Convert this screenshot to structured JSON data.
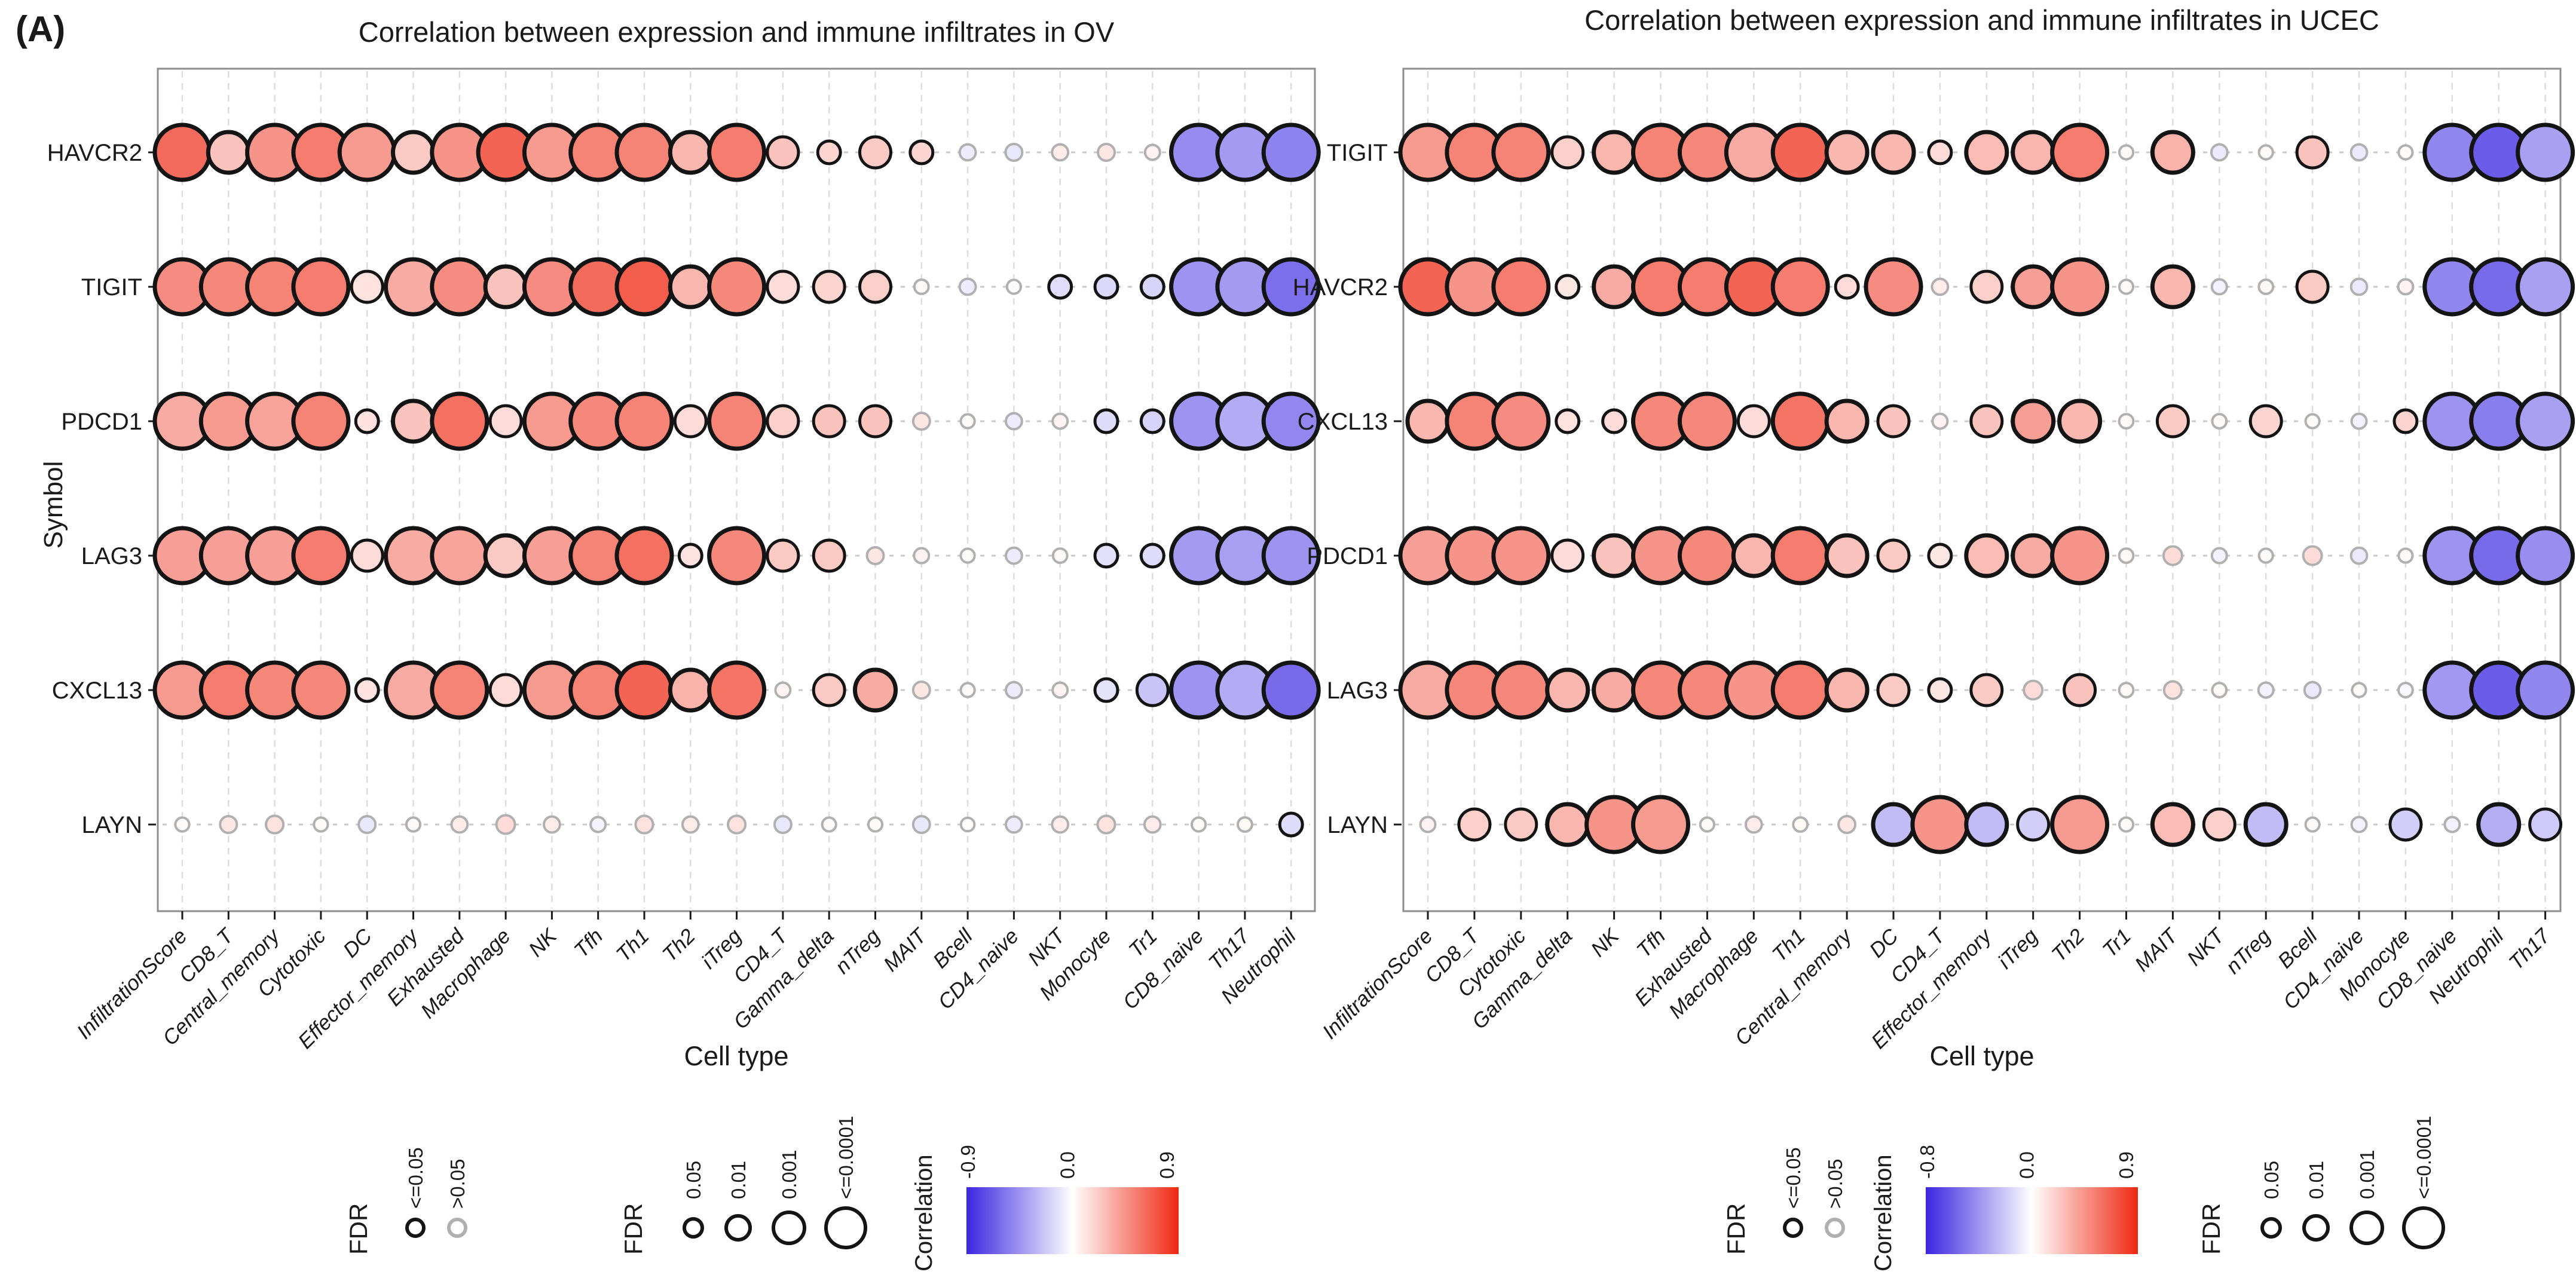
{
  "figure_label": "(A)",
  "chart_data": [
    {
      "type": "scatter",
      "subtype": "bubble-correlation-matrix",
      "title": "Correlation between expression and immune infiltrates in OV",
      "xlabel": "Cell type",
      "ylabel": "Symbol",
      "grid": true,
      "legend_position": "bottom",
      "correlation_range": [
        -0.9,
        0.9
      ],
      "categories": [
        "InfiltrationScore",
        "CD8_T",
        "Central_memory",
        "Cytotoxic",
        "DC",
        "Effector_memory",
        "Exhausted",
        "Macrophage",
        "NK",
        "Tfh",
        "Th1",
        "Th2",
        "iTreg",
        "CD4_T",
        "Gamma_delta",
        "nTreg",
        "MAIT",
        "Bcell",
        "CD4_naive",
        "NKT",
        "Monocyte",
        "Tr1",
        "CD8_naive",
        "Th17",
        "Neutrophil"
      ],
      "rows": [
        {
          "gene": "HAVCR2",
          "corr": [
            0.62,
            0.25,
            0.45,
            0.55,
            0.42,
            0.22,
            0.45,
            0.65,
            0.42,
            0.52,
            0.52,
            0.3,
            0.55,
            0.25,
            0.18,
            0.22,
            0.18,
            -0.08,
            -0.1,
            0.08,
            0.1,
            0.05,
            -0.48,
            -0.42,
            -0.52
          ],
          "fdr_level": [
            4,
            3,
            4,
            4,
            4,
            3,
            4,
            4,
            4,
            4,
            4,
            3,
            4,
            2,
            1,
            2,
            1,
            0,
            0,
            0,
            0,
            0,
            4,
            4,
            4
          ]
        },
        {
          "gene": "TIGIT",
          "corr": [
            0.48,
            0.5,
            0.52,
            0.55,
            0.12,
            0.35,
            0.48,
            0.25,
            0.48,
            0.62,
            0.68,
            0.3,
            0.5,
            0.15,
            0.18,
            0.2,
            0.03,
            -0.08,
            -0.02,
            -0.14,
            -0.16,
            -0.18,
            -0.45,
            -0.42,
            -0.6
          ],
          "fdr_level": [
            4,
            4,
            4,
            4,
            2,
            4,
            4,
            3,
            4,
            4,
            4,
            3,
            4,
            2,
            2,
            2,
            0,
            0,
            0,
            1,
            1,
            1,
            4,
            4,
            4
          ]
        },
        {
          "gene": "PDCD1",
          "corr": [
            0.35,
            0.42,
            0.38,
            0.52,
            0.12,
            0.25,
            0.6,
            0.15,
            0.42,
            0.5,
            0.52,
            0.15,
            0.52,
            0.2,
            0.25,
            0.25,
            0.1,
            0.02,
            -0.08,
            0.05,
            -0.15,
            -0.18,
            -0.45,
            -0.35,
            -0.5
          ],
          "fdr_level": [
            4,
            4,
            4,
            4,
            1,
            3,
            4,
            2,
            4,
            4,
            4,
            2,
            4,
            2,
            2,
            2,
            0,
            0,
            0,
            0,
            1,
            1,
            4,
            4,
            4
          ]
        },
        {
          "gene": "LAG3",
          "corr": [
            0.4,
            0.4,
            0.4,
            0.55,
            0.15,
            0.35,
            0.38,
            0.22,
            0.4,
            0.52,
            0.6,
            0.12,
            0.5,
            0.22,
            0.22,
            0.1,
            0.05,
            0.02,
            -0.08,
            0.03,
            -0.13,
            -0.15,
            -0.42,
            -0.4,
            -0.45
          ],
          "fdr_level": [
            4,
            4,
            4,
            4,
            2,
            4,
            4,
            3,
            4,
            4,
            4,
            1,
            4,
            2,
            2,
            0,
            0,
            0,
            0,
            0,
            1,
            1,
            4,
            4,
            4
          ]
        },
        {
          "gene": "CXCL13",
          "corr": [
            0.42,
            0.55,
            0.5,
            0.5,
            0.12,
            0.35,
            0.52,
            0.15,
            0.42,
            0.52,
            0.65,
            0.32,
            0.58,
            0.05,
            0.22,
            0.35,
            0.1,
            0.02,
            -0.08,
            0.05,
            -0.12,
            -0.25,
            -0.45,
            -0.35,
            -0.62
          ],
          "fdr_level": [
            4,
            4,
            4,
            4,
            1,
            4,
            4,
            2,
            4,
            4,
            4,
            3,
            4,
            0,
            2,
            3,
            0,
            0,
            0,
            0,
            1,
            2,
            4,
            4,
            4
          ]
        },
        {
          "gene": "LAYN",
          "corr": [
            0.02,
            0.1,
            0.12,
            0.02,
            -0.1,
            0.02,
            0.08,
            0.15,
            0.08,
            -0.05,
            0.12,
            0.08,
            0.12,
            -0.1,
            0.02,
            0.02,
            -0.1,
            0.01,
            -0.08,
            0.08,
            0.12,
            0.08,
            0.02,
            0.03,
            -0.15
          ],
          "fdr_level": [
            0,
            0,
            0,
            0,
            0,
            0,
            0,
            0,
            0,
            0,
            0,
            0,
            0,
            0,
            0,
            0,
            0,
            0,
            0,
            0,
            0,
            0,
            0,
            0,
            1
          ]
        }
      ],
      "legend": {
        "order": [
          "fdr_significance",
          "fdr_size",
          "correlation"
        ],
        "fdr_significance": {
          "title": "FDR",
          "items": [
            {
              "label": "<=0.05",
              "significant": true
            },
            {
              "label": ">0.05",
              "significant": false
            }
          ]
        },
        "fdr_size": {
          "title": "FDR",
          "items": [
            "0.05",
            "0.01",
            "0.001",
            "<=0.0001"
          ]
        },
        "correlation": {
          "title": "Correlation",
          "labels": [
            "-0.9",
            "0.0",
            "0.9"
          ],
          "colors": [
            "#3c26e1",
            "#ffffff",
            "#ee2812"
          ]
        }
      }
    },
    {
      "type": "scatter",
      "subtype": "bubble-correlation-matrix",
      "title": "Correlation between expression and immune infiltrates in UCEC",
      "xlabel": "Cell type",
      "ylabel": "",
      "grid": true,
      "legend_position": "bottom",
      "correlation_range": [
        -0.8,
        0.9
      ],
      "categories": [
        "InfiltrationScore",
        "CD8_T",
        "Cytotoxic",
        "Gamma_delta",
        "NK",
        "Tfh",
        "Exhausted",
        "Macrophage",
        "Th1",
        "Central_memory",
        "DC",
        "CD4_T",
        "Effector_memory",
        "iTreg",
        "Th2",
        "Tr1",
        "MAIT",
        "NKT",
        "nTreg",
        "Bcell",
        "CD4_naive",
        "Monocyte",
        "CD8_naive",
        "Neutrophil",
        "Th17"
      ],
      "rows": [
        {
          "gene": "TIGIT",
          "corr": [
            0.42,
            0.52,
            0.52,
            0.2,
            0.3,
            0.52,
            0.5,
            0.35,
            0.65,
            0.3,
            0.3,
            0.15,
            0.28,
            0.3,
            0.55,
            0.02,
            0.32,
            -0.08,
            0.02,
            0.25,
            -0.08,
            0.02,
            -0.45,
            -0.6,
            -0.35
          ],
          "fdr_level": [
            4,
            4,
            4,
            2,
            3,
            4,
            4,
            4,
            4,
            3,
            3,
            1,
            3,
            3,
            4,
            0,
            3,
            0,
            0,
            2,
            0,
            0,
            4,
            4,
            4
          ]
        },
        {
          "gene": "HAVCR2",
          "corr": [
            0.65,
            0.45,
            0.55,
            0.1,
            0.35,
            0.55,
            0.55,
            0.65,
            0.55,
            0.15,
            0.48,
            0.08,
            0.2,
            0.4,
            0.45,
            0.02,
            0.3,
            -0.05,
            0.03,
            0.22,
            -0.08,
            0.05,
            -0.45,
            -0.55,
            -0.35
          ],
          "fdr_level": [
            4,
            4,
            4,
            1,
            3,
            4,
            4,
            4,
            4,
            1,
            4,
            0,
            2,
            3,
            4,
            0,
            3,
            0,
            0,
            2,
            0,
            0,
            4,
            4,
            4
          ]
        },
        {
          "gene": "CXCL13",
          "corr": [
            0.3,
            0.52,
            0.48,
            0.12,
            0.15,
            0.5,
            0.5,
            0.15,
            0.58,
            0.3,
            0.25,
            0.05,
            0.25,
            0.4,
            0.3,
            0.03,
            0.22,
            0.03,
            0.18,
            0.02,
            -0.05,
            0.18,
            -0.4,
            -0.48,
            -0.35
          ],
          "fdr_level": [
            3,
            4,
            4,
            1,
            1,
            4,
            4,
            2,
            4,
            3,
            2,
            0,
            2,
            3,
            3,
            0,
            2,
            0,
            2,
            0,
            0,
            1,
            4,
            4,
            4
          ]
        },
        {
          "gene": "PDCD1",
          "corr": [
            0.4,
            0.45,
            0.45,
            0.15,
            0.25,
            0.45,
            0.5,
            0.3,
            0.55,
            0.25,
            0.22,
            0.1,
            0.28,
            0.35,
            0.45,
            0.03,
            0.15,
            -0.05,
            0.02,
            0.15,
            -0.08,
            0.02,
            -0.4,
            -0.55,
            -0.42
          ],
          "fdr_level": [
            4,
            4,
            4,
            2,
            3,
            4,
            4,
            3,
            4,
            3,
            2,
            1,
            3,
            3,
            4,
            0,
            0,
            0,
            0,
            0,
            0,
            0,
            4,
            4,
            4
          ]
        },
        {
          "gene": "LAG3",
          "corr": [
            0.35,
            0.5,
            0.5,
            0.3,
            0.35,
            0.5,
            0.5,
            0.45,
            0.55,
            0.3,
            0.22,
            0.1,
            0.22,
            0.15,
            0.25,
            0.03,
            0.12,
            0.03,
            -0.05,
            -0.08,
            0.02,
            -0.03,
            -0.38,
            -0.6,
            -0.45
          ],
          "fdr_level": [
            4,
            4,
            4,
            3,
            3,
            4,
            4,
            4,
            4,
            3,
            2,
            1,
            2,
            0,
            2,
            0,
            0,
            0,
            0,
            0,
            0,
            0,
            4,
            4,
            4
          ]
        },
        {
          "gene": "LAYN",
          "corr": [
            0.05,
            0.2,
            0.22,
            0.3,
            0.45,
            0.42,
            0.02,
            0.08,
            0.03,
            0.1,
            -0.25,
            0.45,
            -0.25,
            -0.18,
            0.42,
            0.02,
            0.28,
            0.2,
            -0.25,
            0.02,
            -0.05,
            -0.18,
            -0.05,
            -0.3,
            -0.2
          ],
          "fdr_level": [
            0,
            2,
            2,
            3,
            4,
            4,
            0,
            0,
            0,
            0,
            3,
            4,
            3,
            2,
            4,
            0,
            3,
            2,
            3,
            0,
            0,
            2,
            0,
            3,
            2
          ]
        }
      ],
      "legend": {
        "order": [
          "fdr_significance",
          "correlation",
          "fdr_size"
        ],
        "fdr_significance": {
          "title": "FDR",
          "items": [
            {
              "label": "<=0.05",
              "significant": true
            },
            {
              "label": ">0.05",
              "significant": false
            }
          ]
        },
        "fdr_size": {
          "title": "FDR",
          "items": [
            "0.05",
            "0.01",
            "0.001",
            "<=0.0001"
          ]
        },
        "correlation": {
          "title": "Correlation",
          "labels": [
            "-0.8",
            "0.0",
            "0.9"
          ],
          "colors": [
            "#3c26e1",
            "#ffffff",
            "#ee2812"
          ]
        }
      }
    }
  ]
}
